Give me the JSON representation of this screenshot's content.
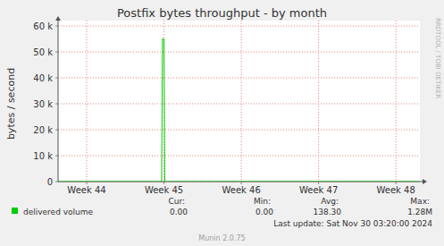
{
  "chart_data": {
    "type": "line",
    "title": "Postfix bytes throughput - by month",
    "y_label": "bytes / second",
    "x": [
      43.63,
      44.97,
      44.98,
      45.0,
      45.01,
      48.31
    ],
    "series": [
      {
        "name": "delivered volume",
        "color": "#00cc00",
        "values": [
          0,
          0,
          55000,
          55000,
          0,
          0
        ]
      }
    ],
    "xlim": [
      43.63,
      48.31
    ],
    "xticks": [
      {
        "value": 44,
        "label": "Week 44"
      },
      {
        "value": 45,
        "label": "Week 45"
      },
      {
        "value": 46,
        "label": "Week 46"
      },
      {
        "value": 47,
        "label": "Week 47"
      },
      {
        "value": 48,
        "label": "Week 48"
      }
    ],
    "ylim": [
      0,
      60000
    ],
    "yticks": [
      0,
      {
        "value": 10000,
        "label": "10 k"
      },
      {
        "value": 20000,
        "label": "20 k"
      },
      {
        "value": 30000,
        "label": "30 k"
      },
      {
        "value": 40000,
        "label": "40 k"
      },
      {
        "value": 50000,
        "label": "50 k"
      },
      {
        "value": 60000,
        "label": "60 k"
      }
    ],
    "grid": true,
    "legend_stats": {
      "headers": [
        "Cur:",
        "Min:",
        "Avg:",
        "Max:"
      ],
      "values": [
        "0.00",
        "0.00",
        "138.30",
        "1.28M"
      ]
    },
    "last_update": "Last update: Sat Nov 30 03:20:00 2024",
    "footer": "Munin 2.0.75",
    "watermark": "RRDTOOL / TOBI OETIKER"
  }
}
